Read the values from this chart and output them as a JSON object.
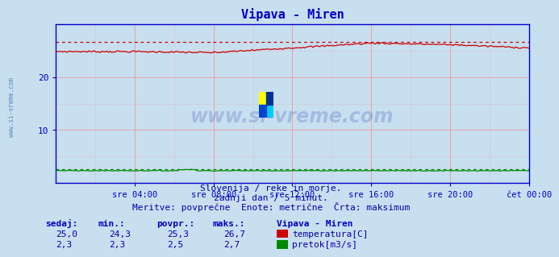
{
  "title": "Vipava - Miren",
  "title_color": "#0000cc",
  "bg_color": "#c8dff0",
  "plot_bg_color": "#c8dff0",
  "grid_color_h": "#ee9999",
  "grid_color_v": "#ee9999",
  "spine_color": "#0000cc",
  "tick_color": "#0000aa",
  "temp_line_color": "#cc0000",
  "temp_max_line_color": "#cc0000",
  "flow_line_color": "#008800",
  "flow_max_line_color": "#008800",
  "ylim": [
    0,
    30
  ],
  "yticks": [
    10,
    20
  ],
  "n_points": 288,
  "temp_min": 24.3,
  "temp_max": 26.7,
  "temp_avg": 25.3,
  "temp_current": 25.0,
  "flow_min": 2.3,
  "flow_max": 2.7,
  "flow_avg": 2.5,
  "flow_current": 2.3,
  "xtick_labels": [
    "sre 04:00",
    "sre 08:00",
    "sre 12:00",
    "sre 16:00",
    "sre 20:00",
    "čet 00:00"
  ],
  "subtitle1": "Slovenija / reke in morje.",
  "subtitle2": "zadnji dan / 5 minut.",
  "subtitle3": "Meritve: povprečne  Enote: metrične  Črta: maksimum",
  "table_headers": [
    "sedaj:",
    "min.:",
    "povpr.:",
    "maks.:"
  ],
  "station_label": "Vipava - Miren",
  "legend_temp": "temperatura[C]",
  "legend_flow": "pretok[m3/s]",
  "watermark": "www.si-vreme.com",
  "left_label": "www.si-vreme.com"
}
